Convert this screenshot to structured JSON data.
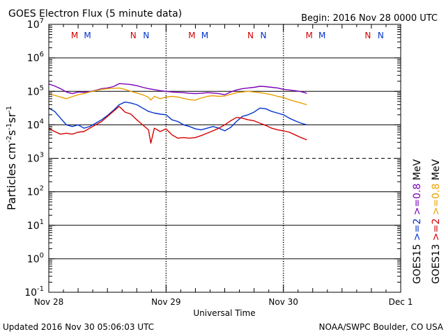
{
  "chart_data": {
    "type": "line",
    "title": "GOES Electron Flux (5 minute data)",
    "begin_label": "Begin: 2016 Nov 28 0000 UTC",
    "xlabel": "Universal Time",
    "ylabel": {
      "base": "Particles cm",
      "exp1": "-2",
      "mid1": "s",
      "exp2": "-1",
      "mid2": "sr",
      "exp3": "-1"
    },
    "footer_left": "Updated 2016 Nov 30 05:06:03 UTC",
    "footer_right": "NOAA/SWPC Boulder, CO USA",
    "xlim_days": [
      0,
      3
    ],
    "x_tick_labels": [
      {
        "day": 0,
        "label": "Nov 28"
      },
      {
        "day": 1,
        "label": "Nov 29"
      },
      {
        "day": 2,
        "label": "Nov 30"
      },
      {
        "day": 3,
        "label": "Dec 1"
      }
    ],
    "ylim_log10": [
      -1,
      7
    ],
    "y_tick_labels": [
      {
        "exp": 7,
        "base": "10",
        "sup": "7"
      },
      {
        "exp": 6,
        "base": "10",
        "sup": "6"
      },
      {
        "exp": 5,
        "base": "10",
        "sup": "5"
      },
      {
        "exp": 4,
        "base": "10",
        "sup": "4"
      },
      {
        "exp": 3,
        "base": "10",
        "sup": "3"
      },
      {
        "exp": 2,
        "base": "10",
        "sup": "2"
      },
      {
        "exp": 1,
        "base": "10",
        "sup": "1"
      },
      {
        "exp": 0,
        "base": "10",
        "sup": "0"
      },
      {
        "exp": -1,
        "base": "10",
        "sup": "-1"
      }
    ],
    "grid_solid_exps": [
      6,
      5,
      4,
      2,
      1,
      0
    ],
    "grid_dashed_exps": [
      3
    ],
    "orbit_markers": [
      {
        "day": 0.22,
        "letter": "M",
        "color": "#d40000"
      },
      {
        "day": 0.33,
        "letter": "M",
        "color": "#0033cc"
      },
      {
        "day": 0.72,
        "letter": "N",
        "color": "#d40000"
      },
      {
        "day": 0.83,
        "letter": "N",
        "color": "#0033cc"
      },
      {
        "day": 1.22,
        "letter": "M",
        "color": "#d40000"
      },
      {
        "day": 1.33,
        "letter": "M",
        "color": "#0033cc"
      },
      {
        "day": 1.72,
        "letter": "N",
        "color": "#d40000"
      },
      {
        "day": 1.83,
        "letter": "N",
        "color": "#0033cc"
      },
      {
        "day": 2.22,
        "letter": "M",
        "color": "#d40000"
      },
      {
        "day": 2.33,
        "letter": "M",
        "color": "#0033cc"
      },
      {
        "day": 2.72,
        "letter": "N",
        "color": "#d40000"
      },
      {
        "day": 2.83,
        "letter": "N",
        "color": "#0033cc"
      }
    ],
    "legend": {
      "col1_text": "GOES15  >=2  >=0.8  MeV",
      "col2_text": "GOES13  >=2  >=0.8  MeV",
      "col1": [
        {
          "text": "GOES15",
          "color": "#000000"
        },
        {
          "text": ">=2",
          "color": "#0033cc"
        },
        {
          "text": ">=0.8",
          "color": "#7a00b8"
        },
        {
          "text": "MeV",
          "color": "#000000"
        }
      ],
      "col2": [
        {
          "text": "GOES13",
          "color": "#000000"
        },
        {
          "text": ">=2",
          "color": "#d40000"
        },
        {
          "text": ">=0.8",
          "color": "#e8a000"
        },
        {
          "text": "MeV",
          "color": "#000000"
        }
      ]
    },
    "series": [
      {
        "name": "GOES15 >=0.8 MeV",
        "color": "#7a00b8",
        "points": [
          [
            0.0,
            5.22
          ],
          [
            0.05,
            5.16
          ],
          [
            0.1,
            5.08
          ],
          [
            0.15,
            4.98
          ],
          [
            0.2,
            4.93
          ],
          [
            0.25,
            4.98
          ],
          [
            0.3,
            4.97
          ],
          [
            0.35,
            4.99
          ],
          [
            0.4,
            5.03
          ],
          [
            0.45,
            5.08
          ],
          [
            0.5,
            5.1
          ],
          [
            0.55,
            5.14
          ],
          [
            0.6,
            5.23
          ],
          [
            0.65,
            5.22
          ],
          [
            0.7,
            5.2
          ],
          [
            0.75,
            5.17
          ],
          [
            0.8,
            5.12
          ],
          [
            0.85,
            5.08
          ],
          [
            0.9,
            5.05
          ],
          [
            0.95,
            5.02
          ],
          [
            1.0,
            5.0
          ],
          [
            1.05,
            4.98
          ],
          [
            1.1,
            4.97
          ],
          [
            1.15,
            4.96
          ],
          [
            1.2,
            4.94
          ],
          [
            1.25,
            4.93
          ],
          [
            1.3,
            4.94
          ],
          [
            1.35,
            4.96
          ],
          [
            1.4,
            4.95
          ],
          [
            1.45,
            4.93
          ],
          [
            1.5,
            4.9
          ],
          [
            1.55,
            4.98
          ],
          [
            1.6,
            5.04
          ],
          [
            1.65,
            5.08
          ],
          [
            1.7,
            5.1
          ],
          [
            1.75,
            5.12
          ],
          [
            1.8,
            5.15
          ],
          [
            1.85,
            5.14
          ],
          [
            1.9,
            5.12
          ],
          [
            1.95,
            5.1
          ],
          [
            2.0,
            5.06
          ],
          [
            2.05,
            5.04
          ],
          [
            2.1,
            5.02
          ],
          [
            2.15,
            4.99
          ],
          [
            2.2,
            4.94
          ]
        ]
      },
      {
        "name": "GOES13 >=0.8 MeV",
        "color": "#e8a000",
        "points": [
          [
            0.0,
            4.92
          ],
          [
            0.05,
            4.88
          ],
          [
            0.1,
            4.83
          ],
          [
            0.15,
            4.78
          ],
          [
            0.2,
            4.84
          ],
          [
            0.25,
            4.9
          ],
          [
            0.3,
            4.93
          ],
          [
            0.35,
            4.98
          ],
          [
            0.4,
            5.02
          ],
          [
            0.45,
            5.06
          ],
          [
            0.5,
            5.08
          ],
          [
            0.55,
            5.09
          ],
          [
            0.6,
            5.1
          ],
          [
            0.65,
            5.06
          ],
          [
            0.7,
            5.0
          ],
          [
            0.75,
            4.95
          ],
          [
            0.8,
            4.9
          ],
          [
            0.85,
            4.82
          ],
          [
            0.87,
            4.74
          ],
          [
            0.9,
            4.85
          ],
          [
            0.95,
            4.78
          ],
          [
            1.0,
            4.83
          ],
          [
            1.05,
            4.85
          ],
          [
            1.1,
            4.83
          ],
          [
            1.15,
            4.79
          ],
          [
            1.2,
            4.75
          ],
          [
            1.25,
            4.74
          ],
          [
            1.3,
            4.8
          ],
          [
            1.35,
            4.85
          ],
          [
            1.4,
            4.87
          ],
          [
            1.45,
            4.85
          ],
          [
            1.5,
            4.86
          ],
          [
            1.55,
            4.91
          ],
          [
            1.6,
            4.96
          ],
          [
            1.65,
            4.98
          ],
          [
            1.7,
            5.0
          ],
          [
            1.75,
            4.98
          ],
          [
            1.8,
            4.96
          ],
          [
            1.85,
            4.93
          ],
          [
            1.9,
            4.9
          ],
          [
            1.95,
            4.85
          ],
          [
            2.0,
            4.82
          ],
          [
            2.05,
            4.75
          ],
          [
            2.1,
            4.7
          ],
          [
            2.15,
            4.65
          ],
          [
            2.2,
            4.6
          ]
        ]
      },
      {
        "name": "GOES15 >=2 MeV",
        "color": "#0033cc",
        "points": [
          [
            0.0,
            4.5
          ],
          [
            0.05,
            4.4
          ],
          [
            0.1,
            4.2
          ],
          [
            0.15,
            4.0
          ],
          [
            0.2,
            3.95
          ],
          [
            0.25,
            4.0
          ],
          [
            0.3,
            3.9
          ],
          [
            0.35,
            3.95
          ],
          [
            0.4,
            4.05
          ],
          [
            0.45,
            4.15
          ],
          [
            0.5,
            4.28
          ],
          [
            0.55,
            4.43
          ],
          [
            0.6,
            4.6
          ],
          [
            0.65,
            4.68
          ],
          [
            0.7,
            4.65
          ],
          [
            0.75,
            4.6
          ],
          [
            0.8,
            4.5
          ],
          [
            0.85,
            4.4
          ],
          [
            0.9,
            4.35
          ],
          [
            0.95,
            4.32
          ],
          [
            1.0,
            4.3
          ],
          [
            1.05,
            4.15
          ],
          [
            1.1,
            4.1
          ],
          [
            1.15,
            4.0
          ],
          [
            1.2,
            3.95
          ],
          [
            1.25,
            3.88
          ],
          [
            1.3,
            3.85
          ],
          [
            1.35,
            3.9
          ],
          [
            1.4,
            3.95
          ],
          [
            1.45,
            3.9
          ],
          [
            1.5,
            3.82
          ],
          [
            1.55,
            3.92
          ],
          [
            1.6,
            4.1
          ],
          [
            1.65,
            4.25
          ],
          [
            1.7,
            4.3
          ],
          [
            1.75,
            4.38
          ],
          [
            1.8,
            4.5
          ],
          [
            1.85,
            4.48
          ],
          [
            1.9,
            4.4
          ],
          [
            1.95,
            4.35
          ],
          [
            2.0,
            4.3
          ],
          [
            2.05,
            4.2
          ],
          [
            2.1,
            4.12
          ],
          [
            2.15,
            4.05
          ],
          [
            2.2,
            4.0
          ]
        ]
      },
      {
        "name": "GOES13 >=2 MeV",
        "color": "#d40000",
        "points": [
          [
            0.0,
            3.9
          ],
          [
            0.05,
            3.8
          ],
          [
            0.1,
            3.72
          ],
          [
            0.15,
            3.75
          ],
          [
            0.2,
            3.72
          ],
          [
            0.25,
            3.78
          ],
          [
            0.3,
            3.8
          ],
          [
            0.35,
            3.9
          ],
          [
            0.4,
            4.0
          ],
          [
            0.45,
            4.1
          ],
          [
            0.5,
            4.25
          ],
          [
            0.55,
            4.4
          ],
          [
            0.6,
            4.55
          ],
          [
            0.65,
            4.38
          ],
          [
            0.7,
            4.32
          ],
          [
            0.75,
            4.15
          ],
          [
            0.8,
            4.0
          ],
          [
            0.85,
            3.85
          ],
          [
            0.87,
            3.45
          ],
          [
            0.9,
            3.9
          ],
          [
            0.95,
            3.8
          ],
          [
            1.0,
            3.88
          ],
          [
            1.05,
            3.7
          ],
          [
            1.1,
            3.6
          ],
          [
            1.15,
            3.62
          ],
          [
            1.2,
            3.6
          ],
          [
            1.25,
            3.62
          ],
          [
            1.3,
            3.68
          ],
          [
            1.35,
            3.75
          ],
          [
            1.4,
            3.82
          ],
          [
            1.45,
            3.9
          ],
          [
            1.5,
            4.0
          ],
          [
            1.55,
            4.12
          ],
          [
            1.6,
            4.22
          ],
          [
            1.65,
            4.2
          ],
          [
            1.7,
            4.15
          ],
          [
            1.75,
            4.12
          ],
          [
            1.8,
            4.05
          ],
          [
            1.85,
            3.98
          ],
          [
            1.9,
            3.9
          ],
          [
            1.95,
            3.85
          ],
          [
            2.0,
            3.82
          ],
          [
            2.05,
            3.78
          ],
          [
            2.1,
            3.7
          ],
          [
            2.15,
            3.62
          ],
          [
            2.2,
            3.55
          ]
        ]
      }
    ]
  }
}
